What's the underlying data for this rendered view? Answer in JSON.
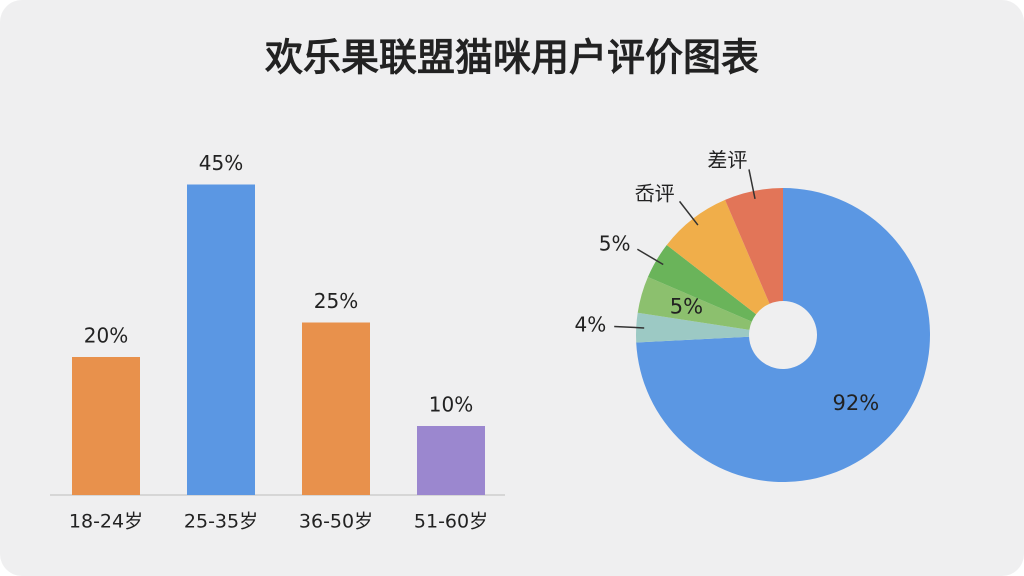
{
  "title": "欢乐果联盟猫咪用户评价图表",
  "chart_data": [
    {
      "type": "bar",
      "categories": [
        "18-24岁",
        "25-35岁",
        "36-50岁",
        "51-60岁"
      ],
      "values": [
        20,
        45,
        25,
        10
      ],
      "value_labels": [
        "20%",
        "45%",
        "25%",
        "10%"
      ],
      "colors": [
        "#e8914c",
        "#5b97e3",
        "#e8914c",
        "#9b87cf"
      ]
    },
    {
      "type": "pie",
      "categories": [
        null,
        null,
        null,
        null,
        "岙评",
        "差评"
      ],
      "values": [
        92,
        4,
        5,
        5,
        10,
        8
      ],
      "value_labels": [
        "92%",
        "4%",
        "5%",
        "5%",
        null,
        null
      ],
      "colors": [
        "#5b97e3",
        "#9cc9c4",
        "#8cc06e",
        "#6ab45a",
        "#f0ae4a",
        "#e27558"
      ]
    }
  ]
}
